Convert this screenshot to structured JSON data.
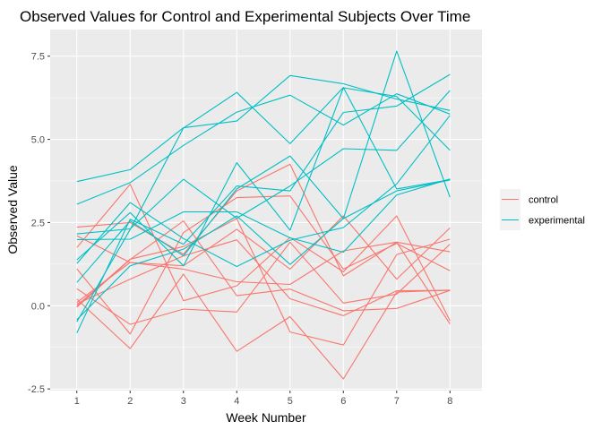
{
  "chart_data": {
    "type": "line",
    "title": "Observed Values for Control and Experimental Subjects Over Time",
    "xlabel": "Week Number",
    "ylabel": "Observed Value",
    "x": [
      1,
      2,
      3,
      4,
      5,
      6,
      7,
      8
    ],
    "x_ticks": [
      "1",
      "2",
      "3",
      "4",
      "5",
      "6",
      "7",
      "8"
    ],
    "y_ticks": [
      "-2.5",
      "0.0",
      "2.5",
      "5.0",
      "7.5"
    ],
    "xlim": [
      0.5,
      8.6
    ],
    "ylim": [
      -2.55,
      8.3
    ],
    "grid": true,
    "legend_position": "right",
    "groups": [
      {
        "name": "control",
        "color": "#F8766D",
        "series": [
          [
            2.36,
            2.5,
            1.55,
            3.45,
            4.25,
            0.9,
            1.91,
            1.62
          ],
          [
            0.1,
            1.3,
            1.2,
            2.3,
            1.1,
            2.7,
            0.8,
            2.34
          ],
          [
            1.11,
            -0.85,
            2.2,
            3.25,
            3.3,
            1.1,
            1.87,
            1.05
          ],
          [
            -0.04,
            1.39,
            2.55,
            0.3,
            0.5,
            -0.15,
            -0.08,
            0.46
          ],
          [
            1.75,
            3.65,
            0.15,
            0.6,
            2.05,
            1.02,
            2.7,
            -0.45
          ],
          [
            0.2,
            -1.29,
            0.95,
            -1.37,
            -0.33,
            -2.2,
            0.41,
            0.47
          ],
          [
            0.51,
            -0.56,
            -0.1,
            -0.19,
            1.91,
            0.08,
            0.35,
            1.85
          ],
          [
            0.0,
            1.4,
            1.78,
            2.62,
            -0.79,
            -1.18,
            1.54,
            2.0
          ],
          [
            0.05,
            0.8,
            1.5,
            1.98,
            0.21,
            -0.3,
            0.45,
            0.46
          ],
          [
            2.1,
            1.3,
            1.1,
            0.72,
            0.64,
            1.65,
            1.91,
            -0.55
          ]
        ]
      },
      {
        "name": "experimental",
        "color": "#00BFC4",
        "series": [
          [
            3.73,
            4.09,
            5.35,
            5.55,
            6.92,
            6.67,
            6.21,
            5.87
          ],
          [
            3.05,
            3.7,
            4.82,
            5.82,
            6.33,
            5.43,
            6.37,
            5.76
          ],
          [
            -0.82,
            2.6,
            1.85,
            3.6,
            3.45,
            5.81,
            6.0,
            6.95
          ],
          [
            -0.42,
            1.2,
            1.7,
            2.7,
            1.24,
            2.62,
            3.45,
            3.78
          ],
          [
            1.38,
            2.8,
            1.2,
            4.3,
            2.27,
            6.55,
            6.29,
            4.67
          ],
          [
            1.99,
            2.0,
            2.82,
            2.82,
            2.04,
            1.61,
            3.33,
            3.81
          ],
          [
            2.16,
            2.31,
            3.8,
            2.63,
            3.6,
            4.72,
            4.67,
            6.47
          ],
          [
            0.7,
            2.55,
            1.5,
            3.51,
            4.5,
            2.62,
            7.65,
            3.26
          ],
          [
            -0.48,
            2.29,
            5.34,
            6.41,
            4.87,
            6.56,
            3.51,
            3.79
          ],
          [
            1.27,
            3.1,
            2.02,
            1.18,
            1.97,
            2.35,
            3.66,
            5.72
          ]
        ]
      }
    ]
  }
}
